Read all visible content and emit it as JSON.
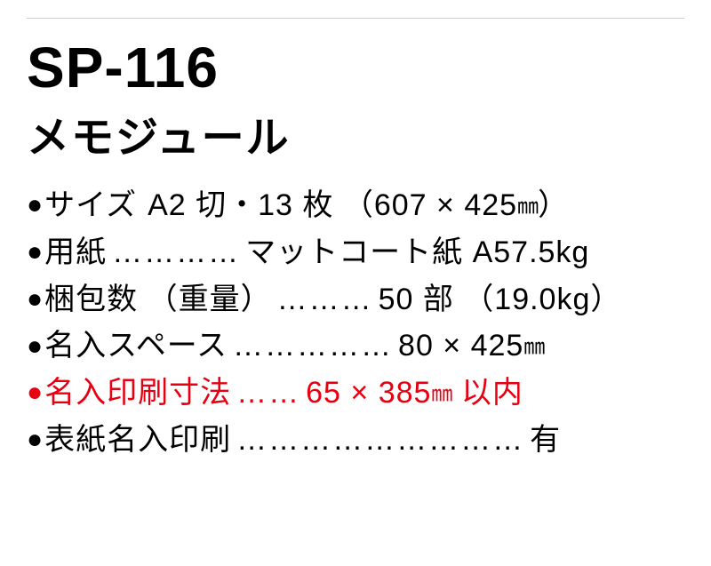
{
  "divider_color": "#cccccc",
  "product": {
    "code": "SP-116",
    "name": "メモジュール"
  },
  "specs": [
    {
      "bullet_color": "#000000",
      "text_color": "#000000",
      "label": "サイズ",
      "dots": "  ",
      "value_prefix": "A2 切・13 枚 （607 × 425",
      "value_unit": "㎜",
      "value_suffix": "）"
    },
    {
      "bullet_color": "#000000",
      "text_color": "#000000",
      "label": "用紙",
      "dots": "…………",
      "value_prefix": " マットコート紙 A57.5kg",
      "value_unit": "",
      "value_suffix": ""
    },
    {
      "bullet_color": "#000000",
      "text_color": "#000000",
      "label": "梱包数 （重量）",
      "dots": " ………",
      "value_prefix": "50 部 （19.0kg）",
      "value_unit": "",
      "value_suffix": ""
    },
    {
      "bullet_color": "#000000",
      "text_color": "#000000",
      "label": "名入スペース",
      "dots": " ……………",
      "value_prefix": " 80 × 425",
      "value_unit": "㎜",
      "value_suffix": ""
    },
    {
      "bullet_color": "#e60012",
      "text_color": "#e60012",
      "label": "名入印刷寸法",
      "dots": "  ……",
      "value_prefix": "65 × 385",
      "value_unit": "㎜",
      "value_suffix": " 以内"
    },
    {
      "bullet_color": "#000000",
      "text_color": "#000000",
      "label": "表紙名入印刷",
      "dots": " ………………………",
      "value_prefix": "有",
      "value_unit": "",
      "value_suffix": ""
    }
  ]
}
